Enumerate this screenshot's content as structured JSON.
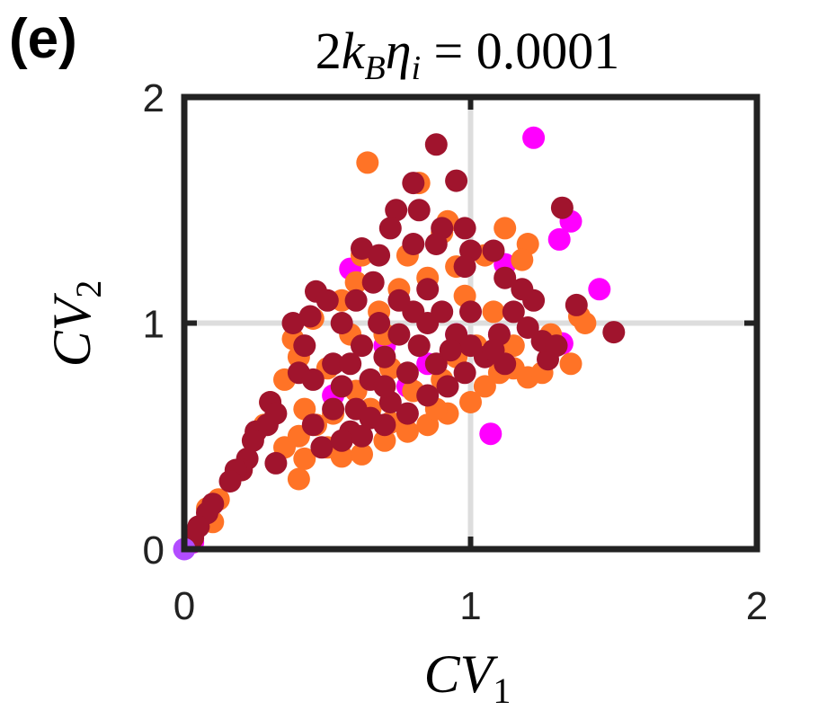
{
  "panel_label": "(e)",
  "title": {
    "lhs": "2",
    "k": "k",
    "k_sub": "B",
    "eta": "η",
    "eta_sub": "i",
    "rhs": " = 0.0001"
  },
  "xlabel": {
    "main": "CV",
    "sub": "1"
  },
  "ylabel": {
    "main": "CV",
    "sub": "2"
  },
  "colors": {
    "magenta": "#FF00FF",
    "orange": "#FF7326",
    "maroon": "#A0142D",
    "purple": "#B24CFF",
    "grid": "#DDDDDD",
    "axis": "#222222"
  },
  "chart_data": {
    "type": "scatter",
    "xlim": [
      0,
      2
    ],
    "ylim": [
      0,
      2
    ],
    "xticks": [
      "0",
      "1",
      "2"
    ],
    "yticks": [
      "0",
      "1",
      "2"
    ],
    "grid": true,
    "series": [
      {
        "name": "magenta",
        "color": "#FF00FF",
        "points": [
          [
            1.22,
            1.82
          ],
          [
            1.35,
            1.45
          ],
          [
            1.31,
            1.37
          ],
          [
            1.45,
            1.15
          ],
          [
            1.32,
            0.91
          ],
          [
            1.07,
            0.51
          ],
          [
            0.58,
            1.24
          ],
          [
            0.52,
            0.68
          ],
          [
            1.12,
            1.26
          ],
          [
            0.85,
            0.82
          ],
          [
            0.95,
            0.95
          ],
          [
            0.78,
            0.72
          ],
          [
            1.1,
            0.95
          ],
          [
            0.7,
            0.9
          ],
          [
            0.03,
            0.03
          ]
        ]
      },
      {
        "name": "orange",
        "color": "#FF7326",
        "points": [
          [
            0.64,
            1.71
          ],
          [
            0.92,
            1.45
          ],
          [
            1.12,
            1.42
          ],
          [
            1.2,
            1.35
          ],
          [
            1.18,
            1.28
          ],
          [
            1.05,
            1.3
          ],
          [
            0.82,
            1.62
          ],
          [
            0.9,
            1.4
          ],
          [
            0.6,
            1.18
          ],
          [
            0.55,
            1.1
          ],
          [
            0.45,
            1.02
          ],
          [
            0.38,
            0.93
          ],
          [
            0.4,
            0.85
          ],
          [
            0.35,
            0.75
          ],
          [
            0.42,
            0.62
          ],
          [
            0.46,
            0.55
          ],
          [
            0.4,
            0.5
          ],
          [
            0.42,
            0.4
          ],
          [
            0.4,
            0.31
          ],
          [
            0.35,
            0.45
          ],
          [
            0.5,
            0.45
          ],
          [
            0.55,
            0.41
          ],
          [
            0.62,
            0.42
          ],
          [
            0.7,
            0.48
          ],
          [
            0.78,
            0.52
          ],
          [
            0.85,
            0.55
          ],
          [
            0.92,
            0.6
          ],
          [
            1.0,
            0.65
          ],
          [
            1.05,
            0.72
          ],
          [
            1.1,
            0.78
          ],
          [
            1.15,
            0.8
          ],
          [
            1.2,
            0.76
          ],
          [
            1.25,
            0.78
          ],
          [
            1.35,
            0.82
          ],
          [
            1.38,
            1.03
          ],
          [
            1.4,
            1.0
          ],
          [
            1.28,
            0.95
          ],
          [
            0.1,
            0.12
          ],
          [
            0.08,
            0.18
          ],
          [
            0.12,
            0.22
          ],
          [
            0.2,
            0.35
          ],
          [
            0.28,
            0.55
          ],
          [
            0.3,
            0.65
          ],
          [
            0.6,
            0.7
          ],
          [
            0.65,
            0.62
          ],
          [
            0.72,
            0.8
          ],
          [
            0.8,
            0.7
          ],
          [
            0.9,
            0.75
          ],
          [
            0.95,
            0.85
          ],
          [
            1.02,
            0.9
          ],
          [
            0.68,
            1.05
          ],
          [
            0.75,
            1.15
          ],
          [
            0.85,
            1.2
          ],
          [
            0.98,
            1.12
          ],
          [
            0.58,
            0.95
          ],
          [
            0.5,
            0.8
          ],
          [
            0.52,
            0.6
          ],
          [
            0.72,
            0.56
          ],
          [
            0.88,
            0.62
          ],
          [
            1.08,
            1.05
          ],
          [
            0.62,
            1.3
          ],
          [
            0.78,
            1.3
          ],
          [
            0.95,
            1.25
          ],
          [
            1.15,
            0.9
          ],
          [
            0.7,
            0.95
          ]
        ]
      },
      {
        "name": "maroon",
        "color": "#A0142D",
        "points": [
          [
            0.88,
            1.79
          ],
          [
            0.95,
            1.63
          ],
          [
            0.8,
            1.62
          ],
          [
            0.82,
            1.5
          ],
          [
            0.74,
            1.5
          ],
          [
            0.72,
            1.42
          ],
          [
            0.8,
            1.35
          ],
          [
            0.62,
            1.33
          ],
          [
            0.68,
            1.3
          ],
          [
            0.9,
            1.42
          ],
          [
            0.98,
            1.42
          ],
          [
            0.88,
            1.35
          ],
          [
            1.0,
            1.32
          ],
          [
            0.98,
            1.25
          ],
          [
            1.08,
            1.32
          ],
          [
            1.32,
            1.51
          ],
          [
            1.37,
            1.08
          ],
          [
            1.5,
            0.96
          ],
          [
            1.27,
            0.84
          ],
          [
            0.46,
            1.14
          ],
          [
            0.5,
            1.1
          ],
          [
            0.44,
            1.03
          ],
          [
            0.38,
            1.0
          ],
          [
            0.42,
            0.9
          ],
          [
            0.4,
            0.78
          ],
          [
            0.45,
            0.75
          ],
          [
            0.52,
            0.82
          ],
          [
            0.55,
            0.72
          ],
          [
            0.6,
            0.62
          ],
          [
            0.58,
            0.52
          ],
          [
            0.45,
            0.55
          ],
          [
            0.48,
            0.45
          ],
          [
            0.55,
            0.48
          ],
          [
            0.62,
            0.5
          ],
          [
            0.7,
            0.55
          ],
          [
            0.3,
            0.65
          ],
          [
            0.32,
            0.6
          ],
          [
            0.29,
            0.55
          ],
          [
            0.25,
            0.52
          ],
          [
            0.24,
            0.48
          ],
          [
            0.22,
            0.4
          ],
          [
            0.32,
            0.38
          ],
          [
            0.2,
            0.35
          ],
          [
            0.18,
            0.35
          ],
          [
            0.16,
            0.3
          ],
          [
            0.1,
            0.2
          ],
          [
            0.08,
            0.16
          ],
          [
            0.05,
            0.1
          ],
          [
            0.03,
            0.05
          ],
          [
            0.65,
            0.75
          ],
          [
            0.7,
            0.85
          ],
          [
            0.75,
            0.95
          ],
          [
            0.8,
            1.05
          ],
          [
            0.85,
            1.15
          ],
          [
            0.9,
            1.05
          ],
          [
            0.95,
            0.95
          ],
          [
            1.0,
            0.9
          ],
          [
            1.05,
            0.85
          ],
          [
            1.1,
            0.95
          ],
          [
            1.15,
            1.05
          ],
          [
            1.2,
            0.98
          ],
          [
            1.25,
            0.92
          ],
          [
            1.22,
            1.1
          ],
          [
            1.18,
            1.15
          ],
          [
            1.12,
            1.2
          ],
          [
            0.72,
            0.65
          ],
          [
            0.78,
            0.6
          ],
          [
            0.85,
            0.68
          ],
          [
            0.92,
            0.72
          ],
          [
            0.98,
            0.78
          ],
          [
            0.68,
            1.0
          ],
          [
            0.62,
            0.9
          ],
          [
            0.58,
            0.82
          ],
          [
            0.75,
            1.1
          ],
          [
            0.82,
            0.9
          ],
          [
            0.88,
            0.82
          ],
          [
            0.7,
            0.72
          ],
          [
            1.0,
            1.05
          ],
          [
            1.08,
            0.88
          ],
          [
            0.66,
            1.18
          ],
          [
            0.55,
            1.0
          ],
          [
            0.6,
            1.1
          ],
          [
            0.93,
            0.88
          ],
          [
            0.78,
            0.78
          ],
          [
            0.85,
            1.0
          ],
          [
            1.3,
            0.9
          ],
          [
            1.12,
            0.82
          ],
          [
            0.52,
            0.62
          ],
          [
            0.65,
            0.58
          ]
        ]
      }
    ]
  }
}
